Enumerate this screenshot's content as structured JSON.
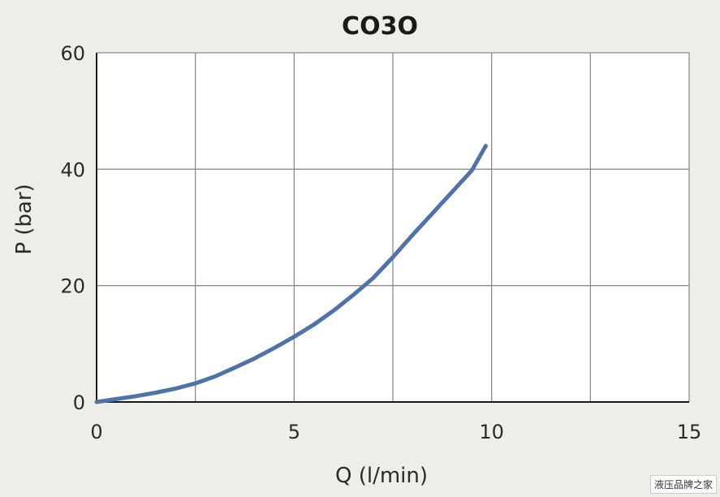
{
  "chart_data": {
    "type": "line",
    "title": "CO3O",
    "xlabel": "Q (l/min)",
    "ylabel": "P (bar)",
    "xlim": [
      0,
      15
    ],
    "ylim": [
      0,
      60
    ],
    "xticks": [
      "0",
      "5",
      "10",
      "15"
    ],
    "yticks": [
      "0",
      "20",
      "40",
      "60"
    ],
    "grid": true,
    "series": [
      {
        "color": "#4f72a8",
        "x": [
          0,
          0.5,
          1,
          1.5,
          2,
          2.5,
          3,
          3.5,
          4,
          4.5,
          5,
          5.5,
          6,
          6.5,
          7,
          7.5,
          8,
          8.5,
          9,
          9.5,
          9.85
        ],
        "y": [
          0,
          0.5,
          1,
          1.6,
          2.3,
          3.2,
          4.4,
          5.9,
          7.5,
          9.3,
          11.2,
          13.3,
          15.7,
          18.4,
          21.3,
          24.9,
          28.7,
          32.4,
          36.1,
          39.8,
          44
        ]
      }
    ]
  },
  "watermark": "液压品牌之家"
}
